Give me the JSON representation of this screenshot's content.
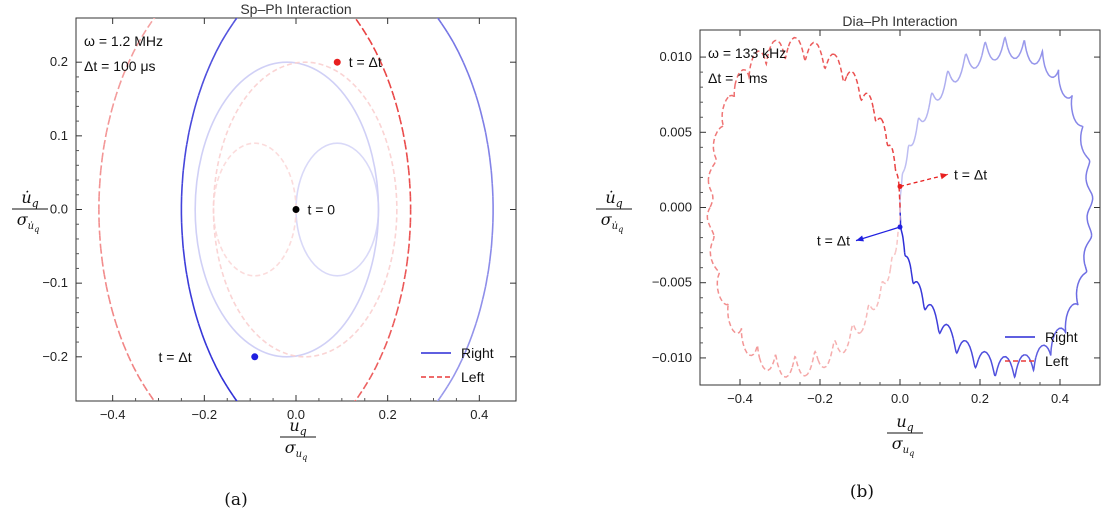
{
  "chart_data": [
    {
      "type": "line",
      "title": "Sp–Ph Interaction",
      "caption": "(a)",
      "xlabel": {
        "numerator": "u",
        "numerator_sub": "q",
        "denominator": "σ",
        "denominator_sub": "u",
        "denominator_subsub": "q"
      },
      "ylabel": {
        "numerator": "u̇",
        "numerator_sub": "q",
        "denominator": "σ",
        "denominator_sub": "u̇",
        "denominator_subsub": "q"
      },
      "xlim": [
        -0.48,
        0.48
      ],
      "ylim": [
        -0.26,
        0.26
      ],
      "xticks": [
        -0.4,
        -0.2,
        0.0,
        0.2,
        0.4
      ],
      "xtick_labels": [
        "−0.4",
        "−0.2",
        "0.0",
        "0.2",
        "0.4"
      ],
      "yticks": [
        -0.2,
        -0.1,
        0.0,
        0.1,
        0.2
      ],
      "ytick_labels": [
        "−0.2",
        "−0.1",
        "0.0",
        "0.1",
        "0.2"
      ],
      "params": [
        "ω = 1.2 MHz",
        "Δt = 100 μs"
      ],
      "legend": {
        "placement": "bottom-right",
        "entries": [
          {
            "label": "Right",
            "color": "#2a2ad6",
            "style": "solid"
          },
          {
            "label": "Left",
            "color": "#e83a3a",
            "style": "dashed"
          }
        ]
      },
      "series": [
        {
          "name": "Right",
          "color": "#2a2ad6",
          "style": "solid",
          "circles": [
            {
              "cx": 0.09,
              "cy": 0.0,
              "r": 0.09,
              "strength": 0.18
            },
            {
              "cx": -0.02,
              "cy": 0.0,
              "r": 0.2,
              "strength": 0.22
            },
            {
              "cx": 0.09,
              "cy": 0.0,
              "r": 0.34,
              "strength": 1.0,
              "fade_from_deg": 240,
              "fade_to_deg": 300
            }
          ]
        },
        {
          "name": "Left",
          "color": "#e83a3a",
          "style": "dashed",
          "circles": [
            {
              "cx": -0.09,
              "cy": 0.0,
              "r": 0.09,
              "strength": 0.18
            },
            {
              "cx": 0.02,
              "cy": 0.0,
              "r": 0.2,
              "strength": 0.22
            },
            {
              "cx": -0.09,
              "cy": 0.0,
              "r": 0.34,
              "strength": 1.0,
              "fade_from_deg": 60,
              "fade_to_deg": 120
            }
          ]
        }
      ],
      "points": [
        {
          "x": 0.0,
          "y": 0.0,
          "color": "#000000",
          "label": "t = 0",
          "label_dx": 0.025,
          "label_dy": 0.0
        },
        {
          "x": 0.09,
          "y": 0.2,
          "color": "#e82020",
          "label": "t = Δt",
          "label_dx": 0.025,
          "label_dy": 0.0
        },
        {
          "x": -0.09,
          "y": -0.2,
          "color": "#2020e0",
          "label": "t = Δt",
          "label_dx": -0.21,
          "label_dy": 0.0
        }
      ]
    },
    {
      "type": "line",
      "title": "Dia–Ph Interaction",
      "caption": "(b)",
      "xlabel": {
        "numerator": "u",
        "numerator_sub": "q",
        "denominator": "σ",
        "denominator_sub": "u",
        "denominator_subsub": "q"
      },
      "ylabel": {
        "numerator": "u̇",
        "numerator_sub": "q",
        "denominator": "σ",
        "denominator_sub": "u̇",
        "denominator_subsub": "q"
      },
      "xlim": [
        -0.5,
        0.5
      ],
      "ylim": [
        -0.0118,
        0.0118
      ],
      "xticks": [
        -0.4,
        -0.2,
        0.0,
        0.2,
        0.4
      ],
      "xtick_labels": [
        "−0.4",
        "−0.2",
        "0.0",
        "0.2",
        "0.4"
      ],
      "yticks": [
        -0.01,
        -0.005,
        0.0,
        0.005,
        0.01
      ],
      "ytick_labels": [
        "−0.010",
        "−0.005",
        "0.000",
        "0.005",
        "0.010"
      ],
      "params": [
        "ω = 133 kHz",
        "Δt = 1 ms"
      ],
      "legend": {
        "placement": "bottom-right",
        "entries": [
          {
            "label": "Right",
            "color": "#2a2ad6",
            "style": "solid"
          },
          {
            "label": "Left",
            "color": "#e83a3a",
            "style": "dashed"
          }
        ]
      },
      "series": [
        {
          "name": "Right",
          "color": "#2a2ad6",
          "style": "solid",
          "loop": {
            "side": 1,
            "x_amp": 0.475,
            "y_amp": 0.0105,
            "ripple_x": 0.007,
            "ripple_y": 0.0007,
            "ripples": 30
          }
        },
        {
          "name": "Left",
          "color": "#e83a3a",
          "style": "dashed",
          "loop": {
            "side": -1,
            "x_amp": 0.475,
            "y_amp": 0.0105,
            "ripple_x": 0.007,
            "ripple_y": 0.0007,
            "ripples": 30
          }
        }
      ],
      "annotations": [
        {
          "label": "t = Δt",
          "from": [
            0.0,
            0.0014
          ],
          "to": [
            0.12,
            0.0022
          ],
          "color": "#e82020",
          "style": "dashed"
        },
        {
          "label": "t = Δt",
          "from": [
            0.0,
            -0.0013
          ],
          "to": [
            -0.11,
            -0.0022
          ],
          "color": "#2020e0",
          "style": "solid"
        }
      ]
    }
  ]
}
